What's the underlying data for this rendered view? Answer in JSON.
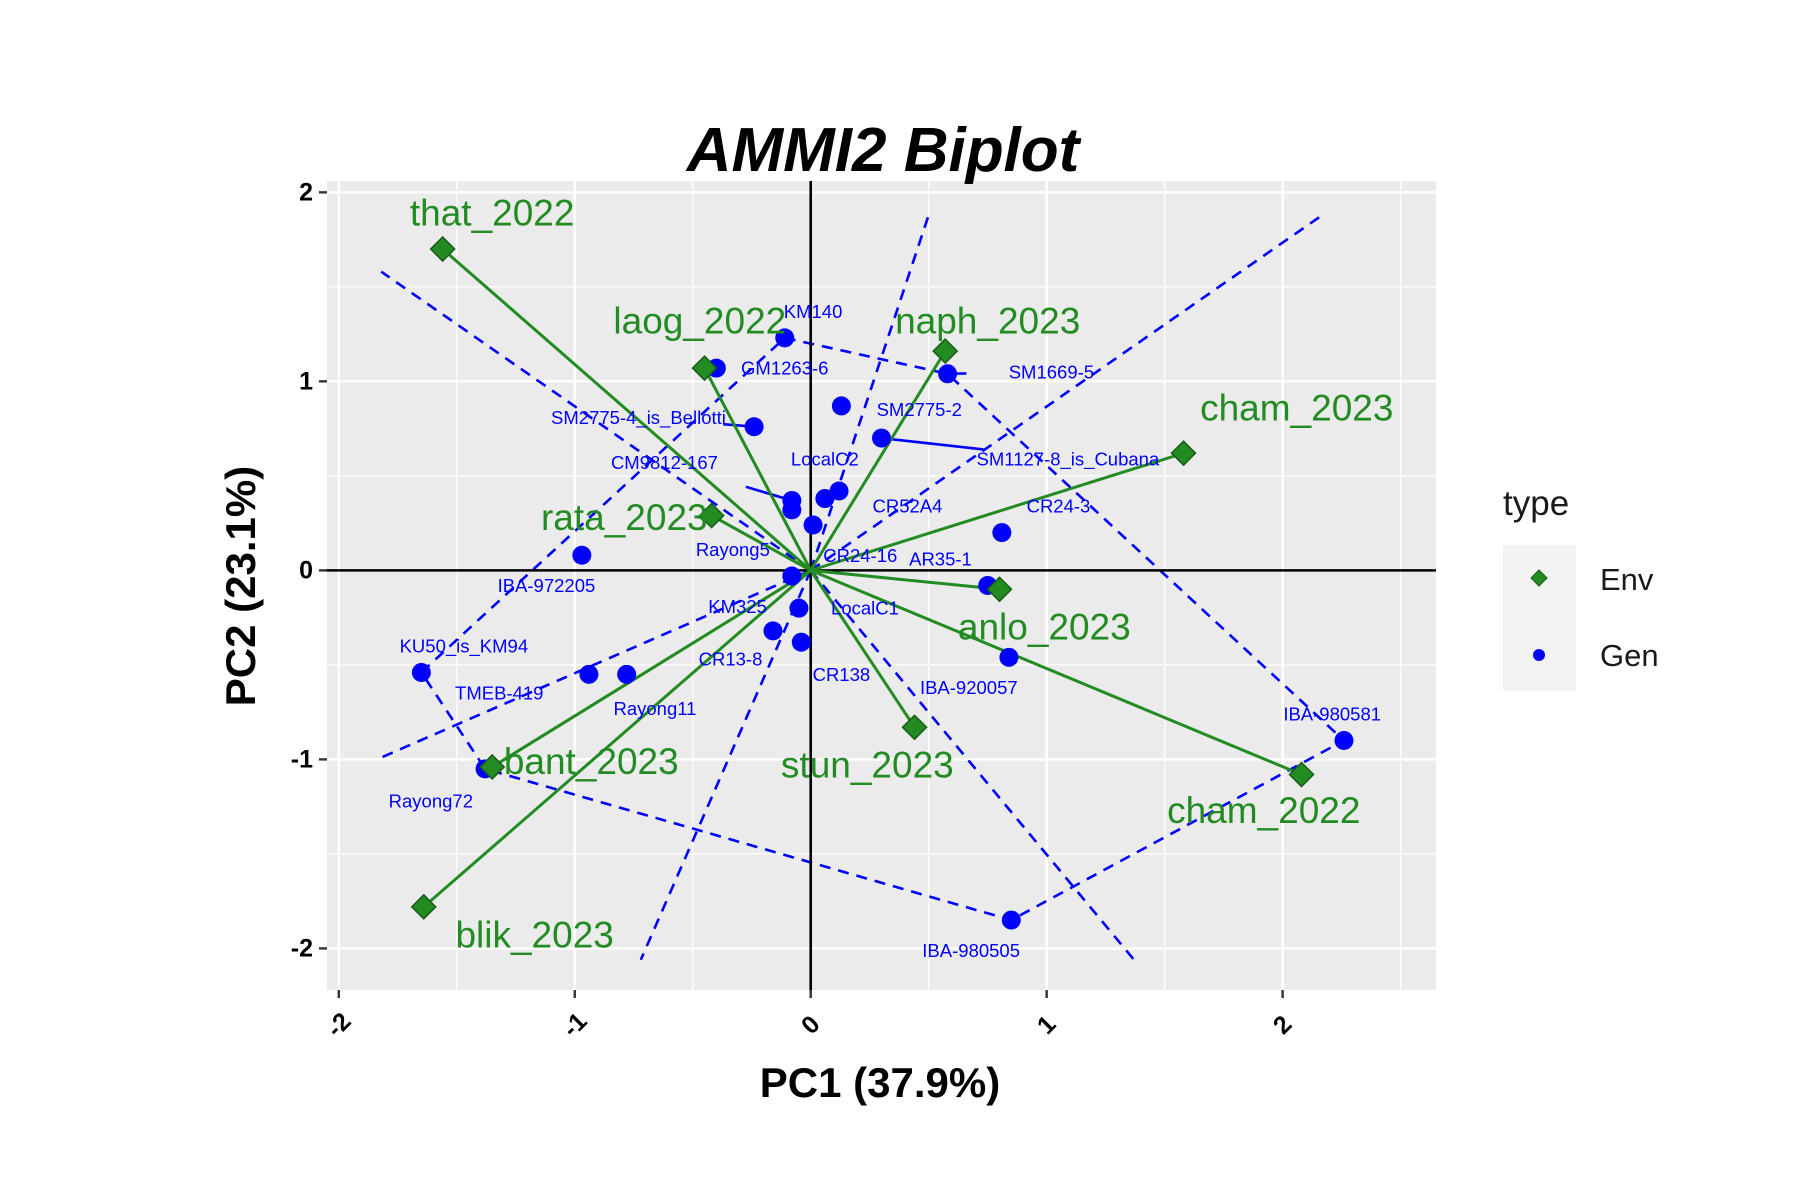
{
  "chart_data": {
    "type": "scatter",
    "title": "AMMI2 Biplot",
    "xlabel": "PC1 (37.9%)",
    "ylabel": "PC2 (23.1%)",
    "xlim": [
      -2.05,
      2.65
    ],
    "ylim": [
      -2.22,
      2.06
    ],
    "xticks": [
      -2,
      -1,
      0,
      1,
      2
    ],
    "yticks": [
      -2,
      -1,
      0,
      1,
      2
    ],
    "grid": true,
    "legend": {
      "title": "type",
      "position": "right",
      "entries": [
        {
          "label": "Env",
          "shape": "diamond",
          "color": "#228B22"
        },
        {
          "label": "Gen",
          "shape": "circle",
          "color": "#0000FF"
        }
      ]
    },
    "colors": {
      "env": "#228B22",
      "env_border": "#1A5C1A",
      "gen": "#0000FF",
      "panel": "#EBEBEB",
      "grid": "#FFFFFF"
    },
    "environments": [
      {
        "name": "that_2022",
        "x": -1.56,
        "y": 1.7,
        "lx": -1.35,
        "ly": 1.89
      },
      {
        "name": "laog_2022",
        "x": -0.45,
        "y": 1.07,
        "lx": -0.47,
        "ly": 1.32
      },
      {
        "name": "naph_2023",
        "x": 0.57,
        "y": 1.16,
        "lx": 0.75,
        "ly": 1.32
      },
      {
        "name": "cham_2023",
        "x": 1.58,
        "y": 0.62,
        "lx": 2.06,
        "ly": 0.86
      },
      {
        "name": "rata_2023",
        "x": -0.42,
        "y": 0.29,
        "lx": -0.79,
        "ly": 0.28
      },
      {
        "name": "anlo_2023",
        "x": 0.8,
        "y": -0.1,
        "lx": 0.99,
        "ly": -0.3
      },
      {
        "name": "stun_2023",
        "x": 0.44,
        "y": -0.83,
        "lx": 0.24,
        "ly": -1.03
      },
      {
        "name": "cham_2022",
        "x": 2.08,
        "y": -1.08,
        "lx": 1.92,
        "ly": -1.27
      },
      {
        "name": "bant_2023",
        "x": -1.35,
        "y": -1.04,
        "lx": -0.93,
        "ly": -1.01
      },
      {
        "name": "blik_2023",
        "x": -1.64,
        "y": -1.78,
        "lx": -1.17,
        "ly": -1.93
      }
    ],
    "genotypes": [
      {
        "name": "KM140",
        "x": -0.11,
        "y": 1.23,
        "lx": 0.01,
        "ly": 1.37
      },
      {
        "name": "GM1263-6",
        "x": -0.4,
        "y": 1.07,
        "lx": -0.11,
        "ly": 1.07
      },
      {
        "name": "SM1669-5",
        "x": 0.58,
        "y": 1.04,
        "lx": 1.02,
        "ly": 1.05
      },
      {
        "name": "SM2775-2",
        "x": 0.13,
        "y": 0.87,
        "lx": 0.46,
        "ly": 0.85
      },
      {
        "name": "SM2775-4_is_Bellotti",
        "x": -0.24,
        "y": 0.76,
        "lx": -0.73,
        "ly": 0.81
      },
      {
        "name": "SM1127-8_is_Cubana",
        "x": 0.3,
        "y": 0.7,
        "lx": 1.09,
        "ly": 0.59
      },
      {
        "name": "LocalC2",
        "x": 0.12,
        "y": 0.42,
        "lx": 0.06,
        "ly": 0.59
      },
      {
        "name": "CM9812-167",
        "x": -0.08,
        "y": 0.37,
        "lx": -0.62,
        "ly": 0.57
      },
      {
        "name": "CR52A4",
        "x": 0.06,
        "y": 0.38,
        "lx": 0.41,
        "ly": 0.34
      },
      {
        "name": "CR24-3",
        "x": 0.81,
        "y": 0.2,
        "lx": 1.05,
        "ly": 0.34
      },
      {
        "name": "Rayong5",
        "x": -0.08,
        "y": 0.32,
        "lx": -0.33,
        "ly": 0.11
      },
      {
        "name": "CR24-16",
        "x": 0.01,
        "y": 0.24,
        "lx": 0.21,
        "ly": 0.08
      },
      {
        "name": "AR35-1",
        "x": 0.75,
        "y": -0.08,
        "lx": 0.55,
        "ly": 0.06
      },
      {
        "name": "IBA-972205",
        "x": -0.97,
        "y": 0.08,
        "lx": -1.12,
        "ly": -0.08
      },
      {
        "name": "KM325",
        "x": -0.08,
        "y": -0.03,
        "lx": -0.31,
        "ly": -0.19
      },
      {
        "name": "LocalC1",
        "x": -0.05,
        "y": -0.2,
        "lx": 0.23,
        "ly": -0.2
      },
      {
        "name": "CR13-8",
        "x": -0.16,
        "y": -0.32,
        "lx": -0.34,
        "ly": -0.47
      },
      {
        "name": "CR138",
        "x": -0.04,
        "y": -0.38,
        "lx": 0.13,
        "ly": -0.55
      },
      {
        "name": "IBA-920057",
        "x": 0.84,
        "y": -0.46,
        "lx": 0.67,
        "ly": -0.62
      },
      {
        "name": "KU50_is_KM94",
        "x": -1.65,
        "y": -0.54,
        "lx": -1.47,
        "ly": -0.4
      },
      {
        "name": "TMEB-419",
        "x": -0.94,
        "y": -0.55,
        "lx": -1.32,
        "ly": -0.65
      },
      {
        "name": "Rayong11",
        "x": -0.78,
        "y": -0.55,
        "lx": -0.66,
        "ly": -0.73
      },
      {
        "name": "IBA-980581",
        "x": 2.26,
        "y": -0.9,
        "lx": 2.21,
        "ly": -0.76
      },
      {
        "name": "Rayong72",
        "x": -1.38,
        "y": -1.05,
        "lx": -1.61,
        "ly": -1.22
      },
      {
        "name": "IBA-980505",
        "x": 0.85,
        "y": -1.85,
        "lx": 0.68,
        "ly": -2.01
      }
    ],
    "polygon_vertices": [
      "KM140",
      "SM1669-5",
      "IBA-980581",
      "IBA-980505",
      "Rayong72",
      "KU50_is_KM94"
    ],
    "sector_rays": [
      {
        "x": -1.82,
        "y": 1.58
      },
      {
        "x": 0.5,
        "y": 1.88
      },
      {
        "x": 2.18,
        "y": 1.89
      },
      {
        "x": 1.37,
        "y": -2.06
      },
      {
        "x": -0.72,
        "y": -2.06
      },
      {
        "x": -1.82,
        "y": -0.99
      }
    ]
  }
}
